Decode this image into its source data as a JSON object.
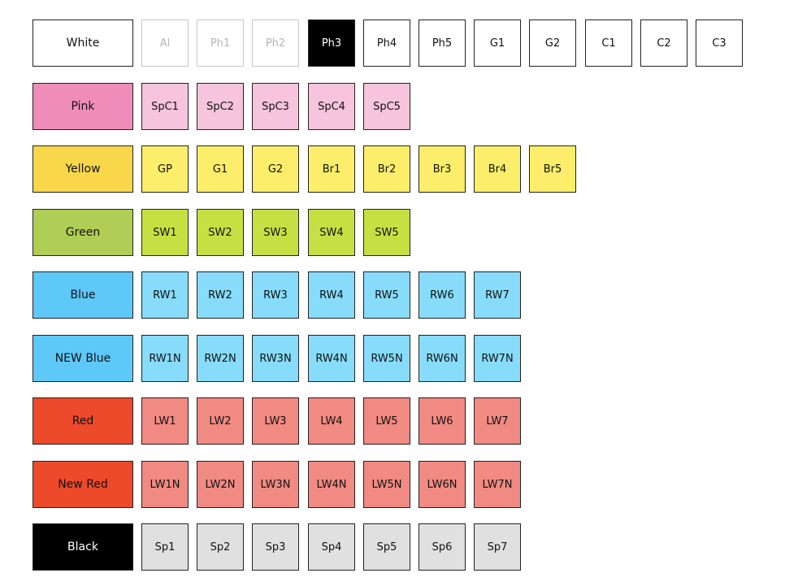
{
  "rows": [
    {
      "name": "white",
      "label": "White",
      "label_bg": "#ffffff",
      "label_fg": "#111111",
      "tile_bg": "#ffffff",
      "tile_fg": "#111111",
      "tiles": [
        {
          "label": "Al",
          "fg": "#b5b5b5",
          "muted": true
        },
        {
          "label": "Ph1",
          "fg": "#b5b5b5",
          "muted": true
        },
        {
          "label": "Ph2",
          "fg": "#b5b5b5",
          "muted": true
        },
        {
          "label": "Ph3",
          "bg": "#000000",
          "fg": "#ffffff"
        },
        {
          "label": "Ph4"
        },
        {
          "label": "Ph5"
        },
        {
          "label": "G1"
        },
        {
          "label": "G2"
        },
        {
          "label": "C1"
        },
        {
          "label": "C2"
        },
        {
          "label": "C3"
        }
      ]
    },
    {
      "name": "pink",
      "label": "Pink",
      "label_bg": "#f08cba",
      "label_fg": "#111111",
      "tile_bg": "#f6c4dc",
      "tile_fg": "#111111",
      "tiles": [
        {
          "label": "SpC1"
        },
        {
          "label": "SpC2"
        },
        {
          "label": "SpC3"
        },
        {
          "label": "SpC4"
        },
        {
          "label": "SpC5"
        }
      ]
    },
    {
      "name": "yellow",
      "label": "Yellow",
      "label_bg": "#f8d74a",
      "label_fg": "#111111",
      "tile_bg": "#fcee6a",
      "tile_fg": "#111111",
      "tiles": [
        {
          "label": "GP"
        },
        {
          "label": "G1"
        },
        {
          "label": "G2"
        },
        {
          "label": "Br1"
        },
        {
          "label": "Br2"
        },
        {
          "label": "Br3"
        },
        {
          "label": "Br4"
        },
        {
          "label": "Br5"
        }
      ]
    },
    {
      "name": "green",
      "label": "Green",
      "label_bg": "#b0cd55",
      "label_fg": "#111111",
      "tile_bg": "#c6e043",
      "tile_fg": "#111111",
      "tiles": [
        {
          "label": "SW1"
        },
        {
          "label": "SW2"
        },
        {
          "label": "SW3"
        },
        {
          "label": "SW4"
        },
        {
          "label": "SW5"
        }
      ]
    },
    {
      "name": "blue",
      "label": "Blue",
      "label_bg": "#5ec8f8",
      "label_fg": "#111111",
      "tile_bg": "#86dcfa",
      "tile_fg": "#111111",
      "tiles": [
        {
          "label": "RW1"
        },
        {
          "label": "RW2"
        },
        {
          "label": "RW3"
        },
        {
          "label": "RW4"
        },
        {
          "label": "RW5"
        },
        {
          "label": "RW6"
        },
        {
          "label": "RW7"
        }
      ]
    },
    {
      "name": "new-blue",
      "label": "NEW Blue",
      "label_bg": "#5ec8f8",
      "label_fg": "#111111",
      "tile_bg": "#86dcfa",
      "tile_fg": "#111111",
      "tiles": [
        {
          "label": "RW1N"
        },
        {
          "label": "RW2N"
        },
        {
          "label": "RW3N"
        },
        {
          "label": "RW4N"
        },
        {
          "label": "RW5N"
        },
        {
          "label": "RW6N"
        },
        {
          "label": "RW7N"
        }
      ]
    },
    {
      "name": "red",
      "label": "Red",
      "label_bg": "#ec4a2a",
      "label_fg": "#111111",
      "tile_bg": "#f08a82",
      "tile_fg": "#111111",
      "tiles": [
        {
          "label": "LW1"
        },
        {
          "label": "LW2"
        },
        {
          "label": "LW3"
        },
        {
          "label": "LW4"
        },
        {
          "label": "LW5"
        },
        {
          "label": "LW6"
        },
        {
          "label": "LW7"
        }
      ]
    },
    {
      "name": "new-red",
      "label": "New Red",
      "label_bg": "#ec4a2a",
      "label_fg": "#111111",
      "tile_bg": "#f08a82",
      "tile_fg": "#111111",
      "tiles": [
        {
          "label": "LW1N"
        },
        {
          "label": "LW2N"
        },
        {
          "label": "LW3N"
        },
        {
          "label": "LW4N"
        },
        {
          "label": "LW5N"
        },
        {
          "label": "LW6N"
        },
        {
          "label": "LW7N"
        }
      ]
    },
    {
      "name": "black",
      "label": "Black",
      "label_bg": "#000000",
      "label_fg": "#ffffff",
      "tile_bg": "#e0e0e0",
      "tile_fg": "#111111",
      "tiles": [
        {
          "label": "Sp1"
        },
        {
          "label": "Sp2"
        },
        {
          "label": "Sp3"
        },
        {
          "label": "Sp4"
        },
        {
          "label": "Sp5"
        },
        {
          "label": "Sp6"
        },
        {
          "label": "Sp7"
        }
      ]
    }
  ]
}
